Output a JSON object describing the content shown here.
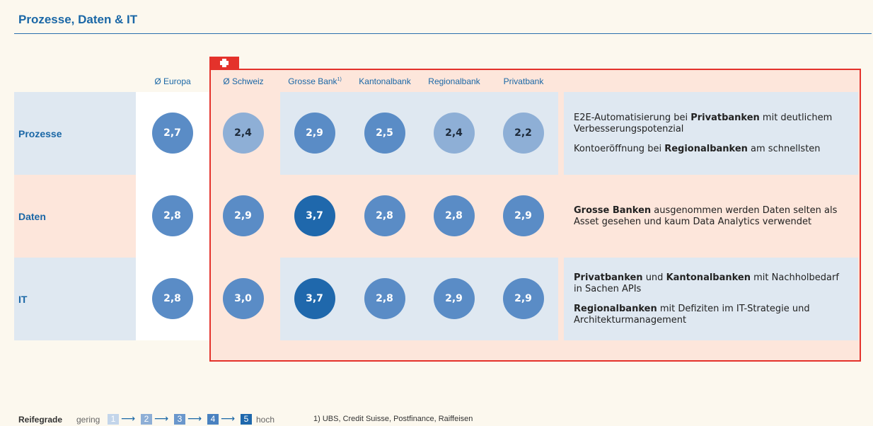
{
  "title": "Prozesse, Daten & IT",
  "columns": [
    {
      "label": "Ø Europa"
    },
    {
      "label": "Ø Schweiz"
    },
    {
      "label": "Grosse Bank",
      "note": "1)"
    },
    {
      "label": "Kantonalbank"
    },
    {
      "label": "Regionalbank"
    },
    {
      "label": "Privatbank"
    }
  ],
  "rows": [
    {
      "label": "Prozesse",
      "cells": [
        {
          "value": "2,7",
          "color": "#5a8cc6",
          "text_color": "#ffffff"
        },
        {
          "value": "2,4",
          "color": "#8eafd6",
          "text_color": "#1d2a3a"
        },
        {
          "value": "2,9",
          "color": "#5a8cc6",
          "text_color": "#ffffff"
        },
        {
          "value": "2,5",
          "color": "#5a8cc6",
          "text_color": "#ffffff"
        },
        {
          "value": "2,4",
          "color": "#8eafd6",
          "text_color": "#1d2a3a"
        },
        {
          "value": "2,2",
          "color": "#8eafd6",
          "text_color": "#1d2a3a"
        }
      ],
      "comments": [
        [
          {
            "text": "E2E-Automatisierung bei "
          },
          {
            "text": "Privatbanken",
            "bold": true
          },
          {
            "text": " mit deutlichem Verbesserungspotenzial"
          }
        ],
        [
          {
            "text": "Kontoeröffnung bei "
          },
          {
            "text": "Regionalbanken",
            "bold": true
          },
          {
            "text": " am schnellsten"
          }
        ]
      ]
    },
    {
      "label": "Daten",
      "cells": [
        {
          "value": "2,8",
          "color": "#5a8cc6",
          "text_color": "#ffffff"
        },
        {
          "value": "2,9",
          "color": "#5a8cc6",
          "text_color": "#ffffff"
        },
        {
          "value": "3,7",
          "color": "#1f68ac",
          "text_color": "#ffffff"
        },
        {
          "value": "2,8",
          "color": "#5a8cc6",
          "text_color": "#ffffff"
        },
        {
          "value": "2,8",
          "color": "#5a8cc6",
          "text_color": "#ffffff"
        },
        {
          "value": "2,9",
          "color": "#5a8cc6",
          "text_color": "#ffffff"
        }
      ],
      "comments": [
        [
          {
            "text": "Grosse Banken",
            "bold": true
          },
          {
            "text": " ausgenommen werden Daten selten als Asset gesehen und kaum Data Analytics verwendet"
          }
        ]
      ]
    },
    {
      "label": "IT",
      "cells": [
        {
          "value": "2,8",
          "color": "#5a8cc6",
          "text_color": "#ffffff"
        },
        {
          "value": "3,0",
          "color": "#5a8cc6",
          "text_color": "#ffffff"
        },
        {
          "value": "3,7",
          "color": "#1f68ac",
          "text_color": "#ffffff"
        },
        {
          "value": "2,8",
          "color": "#5a8cc6",
          "text_color": "#ffffff"
        },
        {
          "value": "2,9",
          "color": "#5a8cc6",
          "text_color": "#ffffff"
        },
        {
          "value": "2,9",
          "color": "#5a8cc6",
          "text_color": "#ffffff"
        }
      ],
      "comments": [
        [
          {
            "text": "Privatbanken",
            "bold": true
          },
          {
            "text": " und "
          },
          {
            "text": "Kantonalbanken",
            "bold": true
          },
          {
            "text": " mit Nachholbedarf in Sachen APIs"
          }
        ],
        [
          {
            "text": "Regionalbanken",
            "bold": true
          },
          {
            "text": " mit Defiziten im IT-Strategie und Architekturmanagement"
          }
        ]
      ]
    }
  ],
  "legend": {
    "title": "Reifegrade",
    "low": "gering",
    "high": "hoch",
    "levels": [
      {
        "label": "1",
        "color": "#c3d5ea"
      },
      {
        "label": "2",
        "color": "#8eafd6"
      },
      {
        "label": "3",
        "color": "#6a97cc"
      },
      {
        "label": "4",
        "color": "#4a82c0"
      },
      {
        "label": "5",
        "color": "#1f68ac"
      }
    ]
  },
  "footnote": "1) UBS, Credit Suisse, Postfinance, Raiffeisen"
}
